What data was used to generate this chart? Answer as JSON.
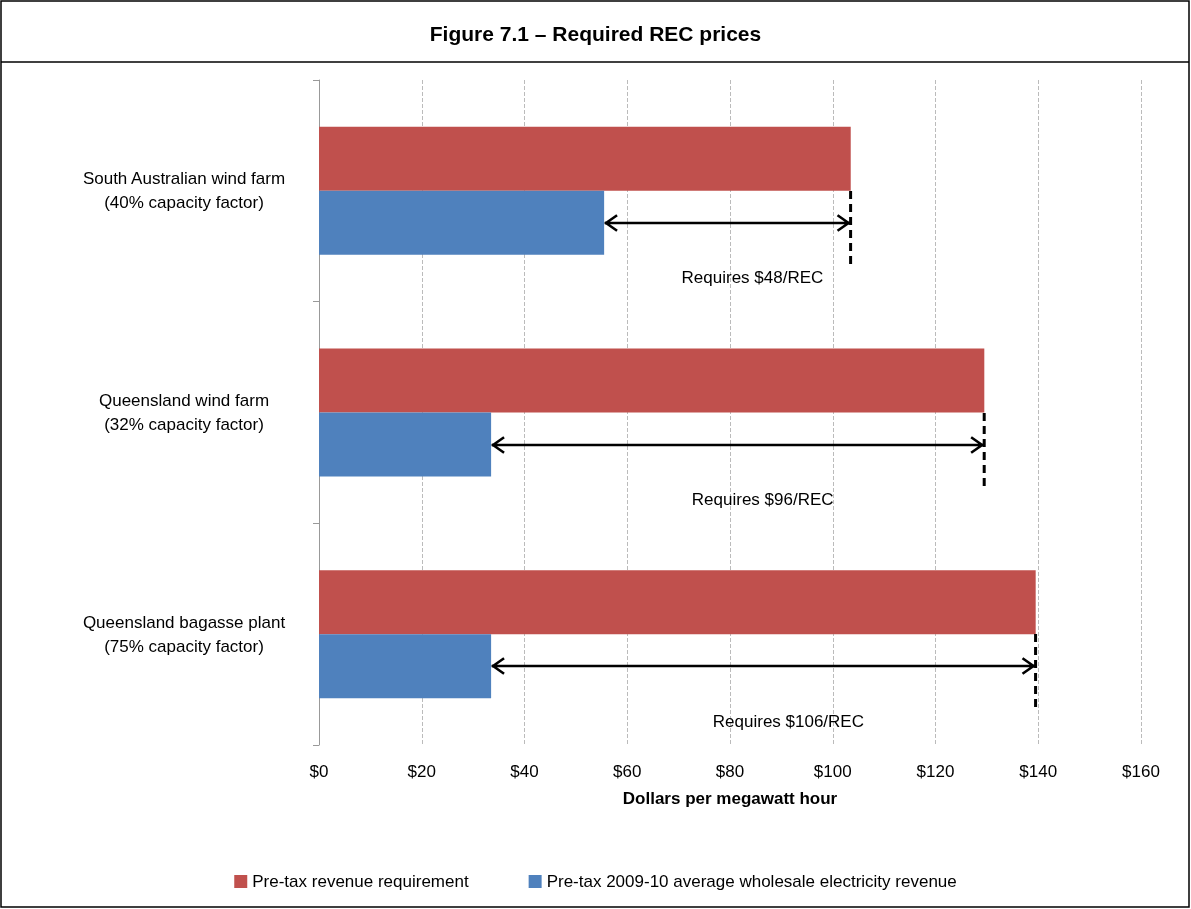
{
  "chart_data": {
    "type": "bar",
    "orientation": "horizontal",
    "title": "Figure 7.1 – Required REC prices",
    "xlabel": "Dollars per megawatt hour",
    "categories": [
      "South Australian wind farm\n(40% capacity factor)",
      "Queensland wind farm\n(32% capacity factor)",
      "Queensland bagasse plant\n(75% capacity factor)"
    ],
    "series": [
      {
        "name": "Pre-tax revenue requirement",
        "color": "#c0504d",
        "values": [
          103.5,
          129.5,
          139.5
        ]
      },
      {
        "name": "Pre-tax 2009-10 average wholesale electricity revenue",
        "color": "#4f81bd",
        "values": [
          55.5,
          33.5,
          33.5
        ]
      }
    ],
    "xlim": [
      0,
      160
    ],
    "xticks": [
      {
        "value": 0,
        "label": "$0"
      },
      {
        "value": 20,
        "label": "$20"
      },
      {
        "value": 40,
        "label": "$40"
      },
      {
        "value": 60,
        "label": "$60"
      },
      {
        "value": 80,
        "label": "$80"
      },
      {
        "value": 100,
        "label": "$100"
      },
      {
        "value": 120,
        "label": "$120"
      },
      {
        "value": 140,
        "label": "$140"
      },
      {
        "value": 160,
        "label": "$160"
      }
    ],
    "annotations": [
      "Requires $48/REC",
      "Requires $96/REC",
      "Requires $106/REC"
    ],
    "grid": "x",
    "legend": "bottom"
  }
}
